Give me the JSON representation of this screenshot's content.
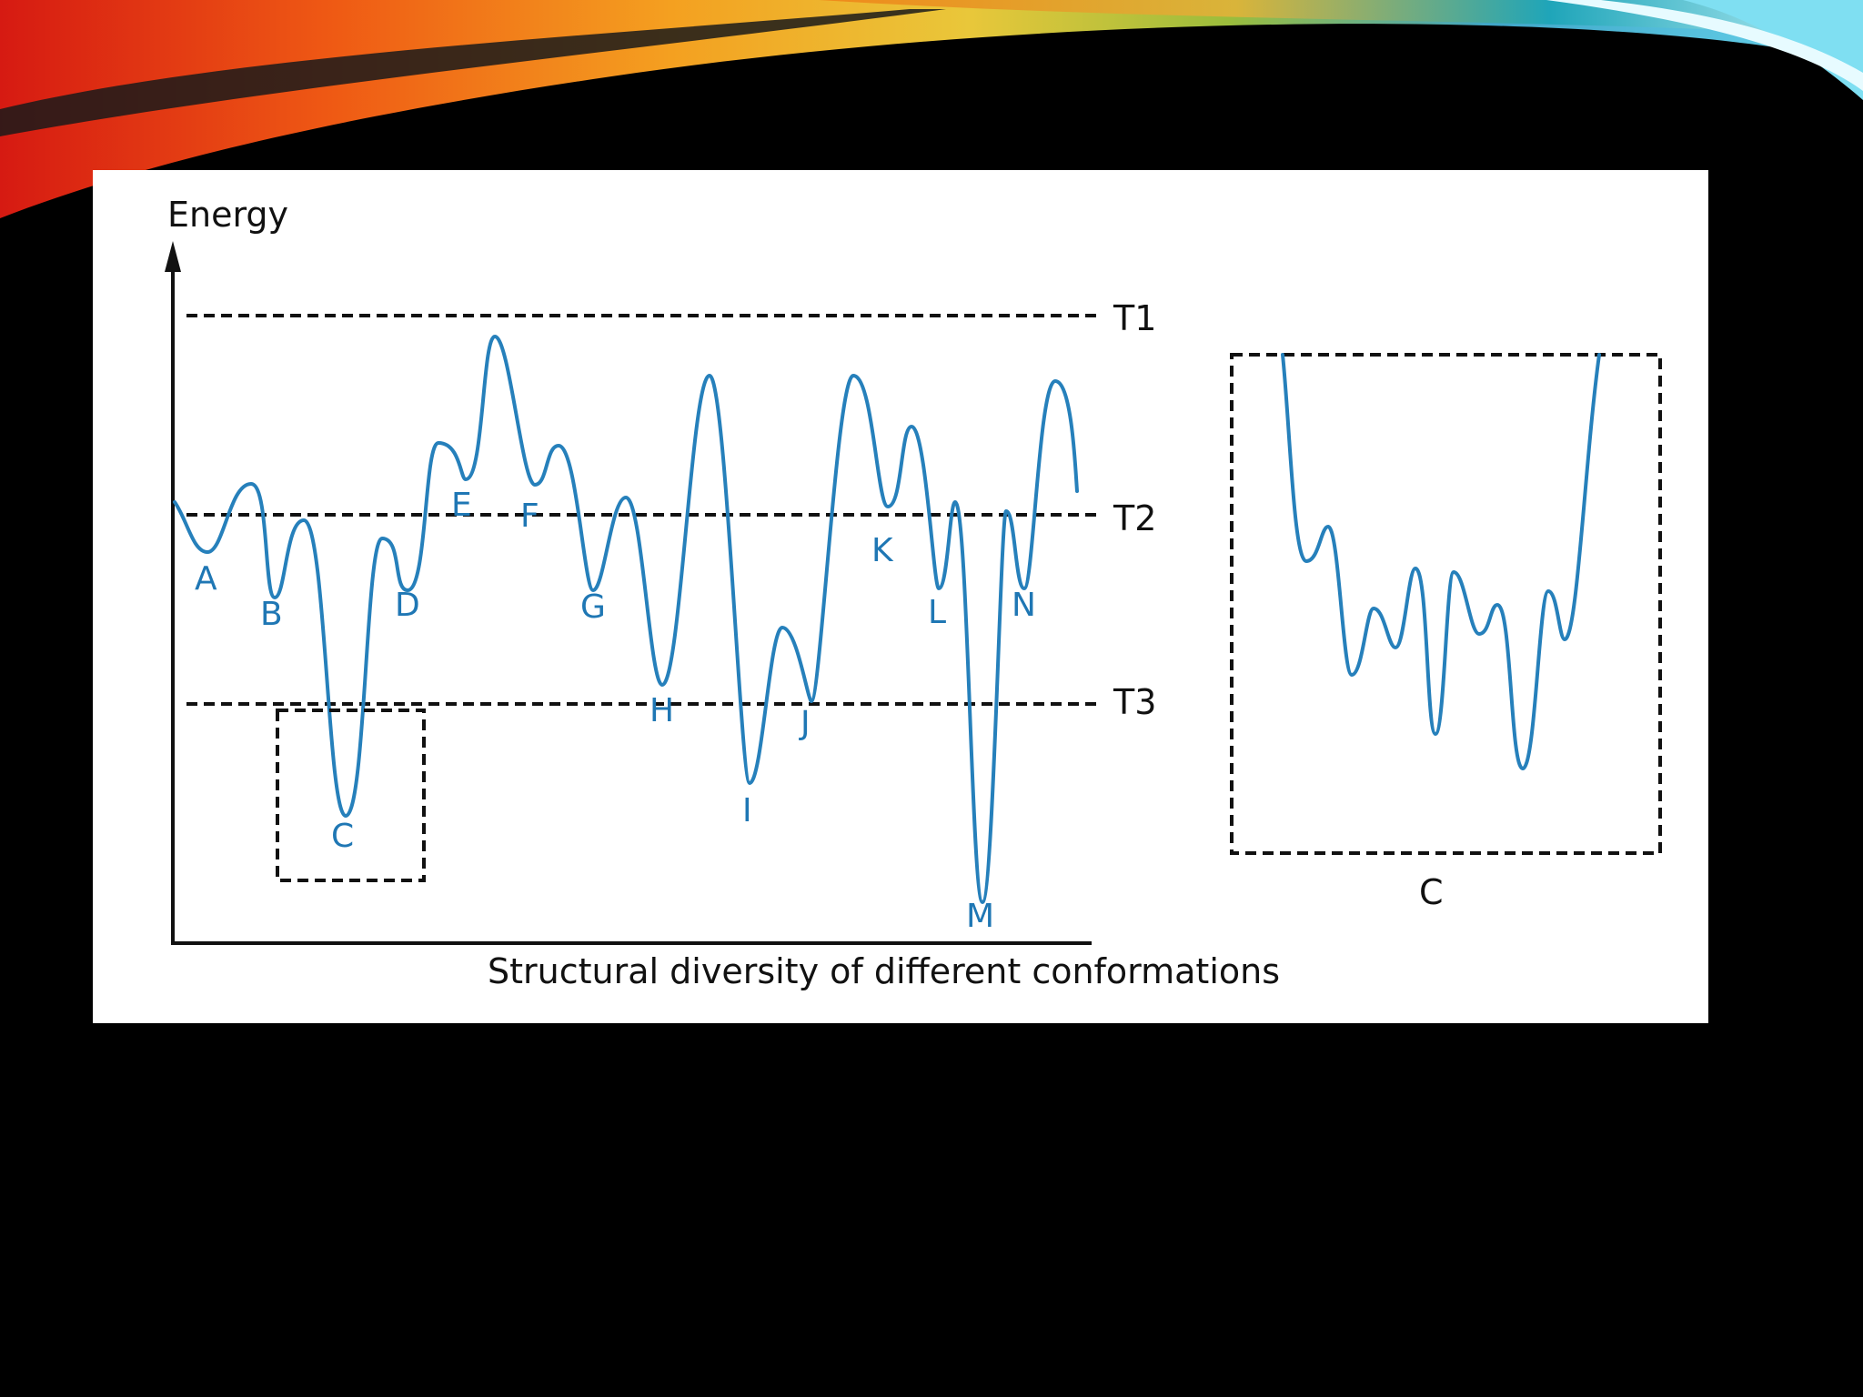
{
  "figure": {
    "y_axis_label": "Energy",
    "x_axis_label": "Structural diversity of different conformations",
    "threshold_labels": [
      "T1",
      "T2",
      "T3"
    ],
    "minima_labels": [
      "A",
      "B",
      "C",
      "D",
      "E",
      "F",
      "G",
      "H",
      "I",
      "J",
      "K",
      "L",
      "M",
      "N"
    ],
    "inset_label": "C"
  },
  "colors": {
    "curve": "#2680bb",
    "labels": "#1f77b4",
    "background": "#000000",
    "panel": "#ffffff"
  }
}
